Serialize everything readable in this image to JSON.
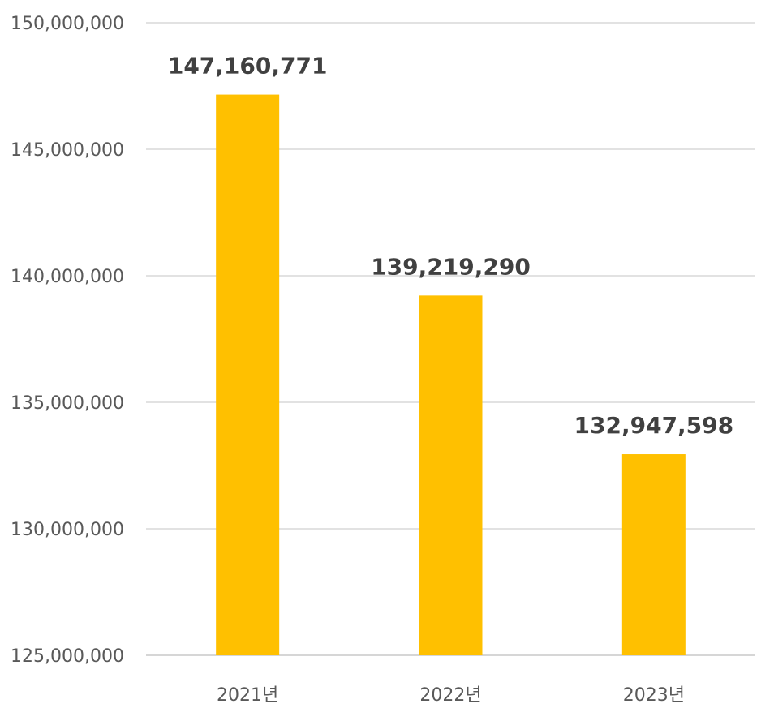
{
  "chart_data": {
    "type": "bar",
    "categories": [
      "2021년",
      "2022년",
      "2023년"
    ],
    "values": [
      147160771,
      139219290,
      132947598
    ],
    "data_labels": [
      "147,160,771",
      "139,219,290",
      "132,947,598"
    ],
    "ylim": [
      125000000,
      150000000
    ],
    "y_ticks": [
      125000000,
      130000000,
      135000000,
      140000000,
      145000000,
      150000000
    ],
    "y_tick_labels": [
      "125,000,000",
      "130,000,000",
      "135,000,000",
      "140,000,000",
      "145,000,000",
      "150,000,000"
    ],
    "title": "",
    "xlabel": "",
    "ylabel": "",
    "grid": true,
    "legend": "none",
    "colors": {
      "bar": "#FFC000",
      "grid": "#d9d9d9",
      "tick_text": "#595959",
      "data_label_text": "#404040"
    }
  }
}
